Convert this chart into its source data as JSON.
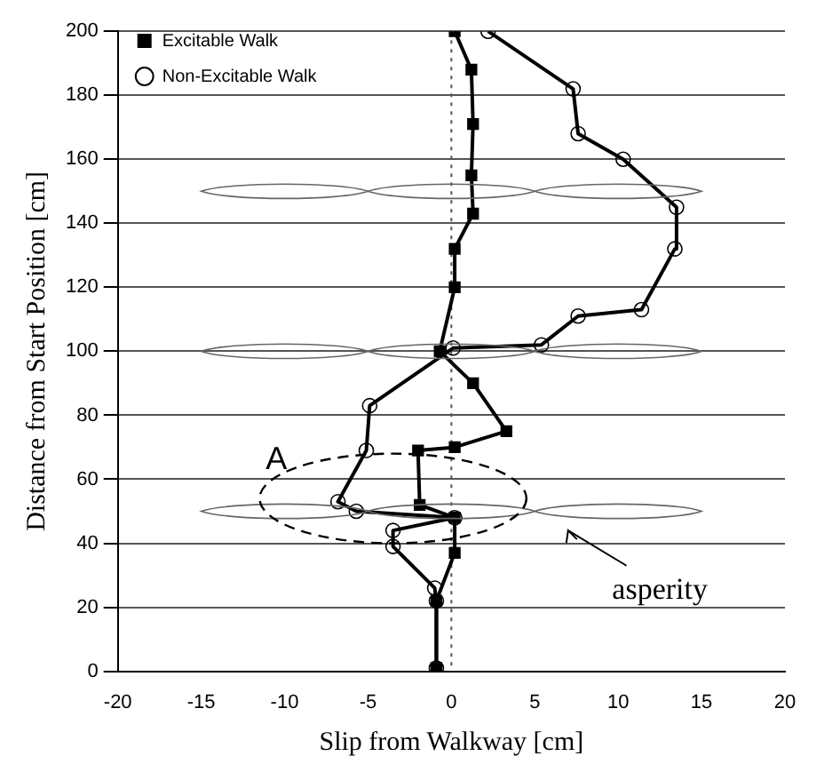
{
  "chart_data": {
    "type": "line",
    "xlabel": "Slip from Walkway [cm]",
    "ylabel": "Distance from Start Position [cm]",
    "xlim": [
      -20,
      20
    ],
    "xticks": [
      -20,
      -15,
      -10,
      -5,
      0,
      5,
      10,
      15,
      20
    ],
    "ylim": [
      0,
      200
    ],
    "yticks": [
      0,
      20,
      40,
      60,
      80,
      100,
      120,
      140,
      160,
      180,
      200
    ],
    "grid": "y",
    "legend": "top left",
    "line_style": "solid",
    "ref_lines": [
      {
        "axis": "x",
        "value": 0,
        "line_style": "dotted",
        "color": "#555555"
      }
    ],
    "annotations": [
      "A",
      "asperity"
    ],
    "series": [
      {
        "name": "Excitable Walk",
        "color": "#000000",
        "marker": "square",
        "x": [
          -0.9,
          -0.9,
          0.2,
          0.2,
          -1.9,
          -2,
          0.2,
          3.3,
          1.3,
          -0.7,
          0.2,
          0.2,
          1.3,
          1.2,
          1.3,
          1.2,
          0.2
        ],
        "values": [
          1,
          22,
          37,
          48,
          52,
          69,
          70,
          75,
          90,
          100,
          120,
          132,
          143,
          155,
          171,
          188,
          200
        ]
      },
      {
        "name": "Non-Excitable Walk",
        "color": "#000000",
        "marker": "circle",
        "x": [
          -0.9,
          -0.9,
          -1,
          -3.5,
          -3.5,
          0.2,
          -5.7,
          -6.8,
          -5.1,
          -4.9,
          0.1,
          5.4,
          7.6,
          11.4,
          13.4,
          13.5,
          10.3,
          7.6,
          7.3,
          2.2
        ],
        "values": [
          1,
          22,
          26,
          39,
          44,
          48,
          50,
          53,
          69,
          83,
          101,
          102,
          111,
          113,
          132,
          145,
          160,
          168,
          182,
          200
        ]
      }
    ]
  }
}
